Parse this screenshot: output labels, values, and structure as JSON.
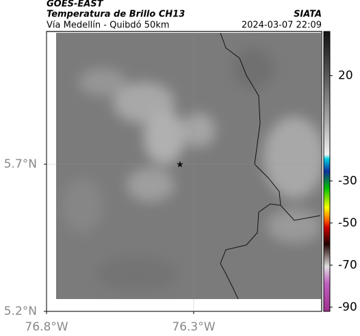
{
  "header": {
    "title": "GOES-EAST",
    "subtitle": "Temperatura de Brillo CH13",
    "region": "Vía Medellín - Quibdó 50km",
    "source": "SIATA",
    "datetime": "2024-03-07 22:09"
  },
  "map": {
    "xlim": [
      -76.8,
      -75.865
    ],
    "ylim": [
      5.2,
      6.151
    ],
    "xticks": [
      {
        "value": -76.8,
        "label": "76.8°W"
      },
      {
        "value": -76.3,
        "label": "76.3°W"
      }
    ],
    "yticks": [
      {
        "value": 5.2,
        "label": "5.2°N"
      },
      {
        "value": 5.7,
        "label": "5.7°N"
      }
    ],
    "grid": true
  },
  "colorbar": {
    "lim": [
      -92,
      41
    ],
    "ticks": [
      20,
      -30,
      -50,
      -70,
      -90
    ]
  }
}
